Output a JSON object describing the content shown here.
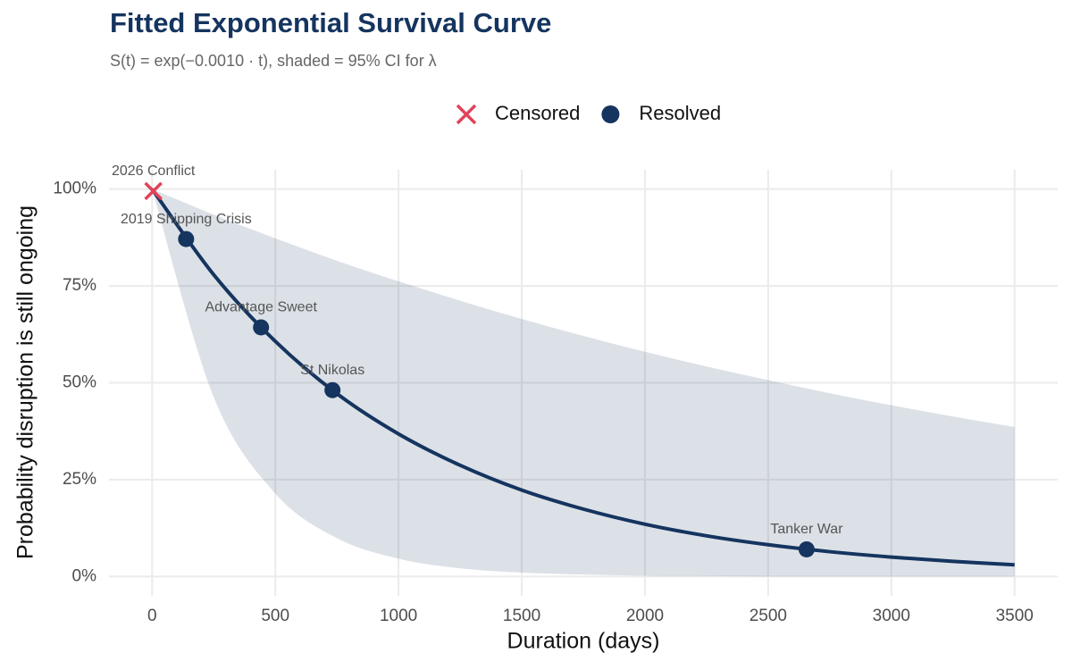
{
  "chart_data": {
    "type": "survival",
    "title": "Fitted Exponential Survival Curve",
    "subtitle": "S(t) = exp(−0.0010 · t),  shaded = 95% CI for λ",
    "x_label": "Duration (days)",
    "y_label": "Probability disruption is still ongoing",
    "xlim": [
      -175,
      3675
    ],
    "ylim": [
      -5,
      105
    ],
    "xticks": [
      0,
      500,
      1000,
      1500,
      2000,
      2500,
      3000,
      3500
    ],
    "yticks": [
      {
        "value": 0,
        "label": "0%"
      },
      {
        "value": 25,
        "label": "25%"
      },
      {
        "value": 50,
        "label": "50%"
      },
      {
        "value": 75,
        "label": "75%"
      },
      {
        "value": 100,
        "label": "100%"
      }
    ],
    "grid": true,
    "legend": "top",
    "fit": {
      "color": "#15345f",
      "band_color": "#15345f",
      "x": [
        0,
        250,
        500,
        750,
        1000,
        1250,
        1500,
        1750,
        2000,
        2250,
        2500,
        2750,
        3000,
        3250,
        3500
      ],
      "values": [
        100,
        77.9,
        60.7,
        47.2,
        36.8,
        28.7,
        22.3,
        17.4,
        13.5,
        10.5,
        8.2,
        6.4,
        5.0,
        3.9,
        3.0
      ],
      "band_lower": [
        100,
        46.3,
        21.4,
        9.9,
        4.6,
        2.1,
        1.0,
        0.5,
        0.2,
        0.1,
        0.0,
        0.0,
        0.0,
        0.0,
        0.0
      ],
      "band_upper": [
        100,
        93.4,
        87.3,
        81.5,
        76.2,
        71.2,
        66.5,
        62.1,
        58.0,
        54.2,
        50.7,
        47.3,
        44.2,
        41.3,
        38.6
      ]
    },
    "series": [
      {
        "name": "Censored",
        "color": "#e0435a",
        "marker": "x",
        "x": [
          5
        ],
        "values": [
          99.5
        ],
        "labels": [
          "2026 Conflict"
        ]
      },
      {
        "name": "Resolved",
        "color": "#15345f",
        "marker": "circle",
        "x": [
          138,
          442,
          732,
          2656
        ],
        "values": [
          87.1,
          64.3,
          48.1,
          7.0
        ],
        "labels": [
          "2019 Shipping Crisis",
          "Advantage Sweet",
          "St Nikolas",
          "Tanker War"
        ]
      }
    ]
  }
}
